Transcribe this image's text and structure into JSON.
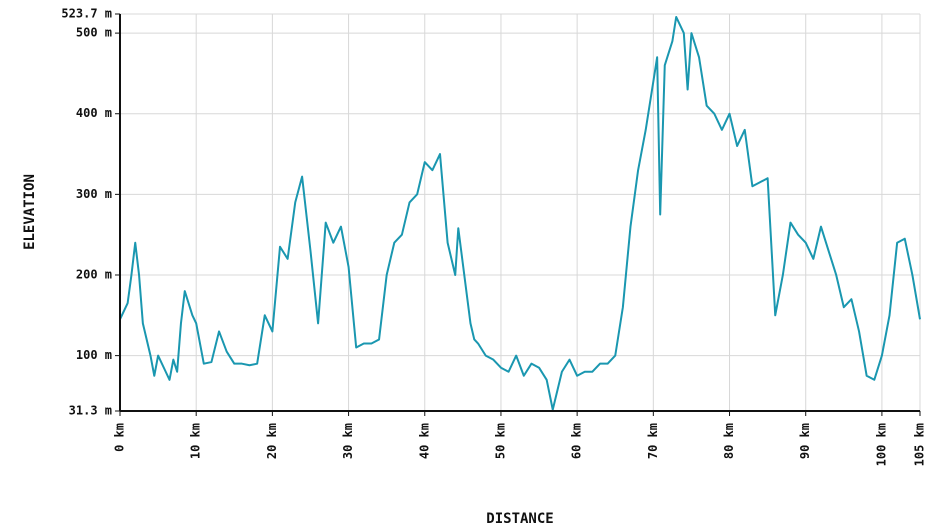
{
  "chart_data": {
    "type": "line",
    "xlabel": "DISTANCE",
    "ylabel": "ELEVATION",
    "x": [
      0,
      1,
      1.5,
      2,
      2.5,
      3,
      4,
      4.5,
      5,
      6,
      6.5,
      7,
      7.5,
      8,
      8.5,
      9.5,
      10,
      11,
      12,
      13,
      14,
      15,
      16,
      17,
      18,
      19,
      20,
      21,
      22,
      23,
      23.9,
      25,
      26,
      27,
      28,
      29,
      30,
      31,
      32,
      33,
      34,
      35,
      36,
      37,
      38,
      39,
      40,
      41,
      42,
      43,
      44,
      44.4,
      46,
      46.5,
      47,
      48,
      49,
      50,
      51,
      52,
      53,
      54,
      55,
      56,
      56.8,
      58,
      59,
      60,
      61,
      62,
      63,
      64,
      65,
      66,
      67,
      68,
      69,
      70,
      70.5,
      70.9,
      71.5,
      72.5,
      73,
      74,
      74.5,
      75,
      76,
      77,
      78,
      79,
      80,
      81,
      82,
      83,
      84,
      85,
      86,
      87,
      88,
      89,
      90,
      91,
      92,
      93,
      94,
      95,
      96,
      97,
      98,
      99,
      100,
      101,
      102,
      103,
      104,
      105
    ],
    "series": [
      {
        "name": "Elevation",
        "color": "#1a97b0",
        "values": [
          145,
          165,
          200,
          240,
          200,
          140,
          100,
          75,
          100,
          80,
          70,
          95,
          80,
          140,
          180,
          150,
          140,
          90,
          92,
          130,
          105,
          90,
          90,
          88,
          90,
          150,
          130,
          235,
          220,
          290,
          322,
          230,
          140,
          265,
          240,
          260,
          210,
          110,
          115,
          115,
          120,
          200,
          240,
          250,
          290,
          300,
          340,
          330,
          350,
          240,
          200,
          258,
          140,
          120,
          115,
          100,
          95,
          85,
          80,
          100,
          75,
          90,
          85,
          70,
          33,
          80,
          95,
          75,
          80,
          80,
          90,
          90,
          100,
          160,
          260,
          330,
          380,
          440,
          470,
          275,
          460,
          490,
          520,
          500,
          430,
          500,
          470,
          410,
          400,
          380,
          400,
          360,
          380,
          310,
          315,
          320,
          150,
          200,
          265,
          250,
          240,
          220,
          260,
          230,
          200,
          160,
          170,
          130,
          75,
          70,
          100,
          150,
          240,
          245,
          200,
          145
        ]
      }
    ],
    "xlim": [
      0,
      105
    ],
    "xticks": [
      {
        "value": 0,
        "label": "0 km"
      },
      {
        "value": 10,
        "label": "10 km"
      },
      {
        "value": 20,
        "label": "20 km"
      },
      {
        "value": 30,
        "label": "30 km"
      },
      {
        "value": 40,
        "label": "40 km"
      },
      {
        "value": 50,
        "label": "50 km"
      },
      {
        "value": 60,
        "label": "60 km"
      },
      {
        "value": 70,
        "label": "70 km"
      },
      {
        "value": 80,
        "label": "80 km"
      },
      {
        "value": 90,
        "label": "90 km"
      },
      {
        "value": 100,
        "label": "100 km"
      },
      {
        "value": 105,
        "label": "105 km"
      }
    ],
    "ylim": [
      31.3,
      523.7
    ],
    "yticks": [
      {
        "value": 31.3,
        "label": "31.3 m"
      },
      {
        "value": 100,
        "label": "100 m"
      },
      {
        "value": 200,
        "label": "200 m"
      },
      {
        "value": 300,
        "label": "300 m"
      },
      {
        "value": 400,
        "label": "400 m"
      },
      {
        "value": 500,
        "label": "500 m"
      },
      {
        "value": 523.7,
        "label": "523.7 m"
      }
    ],
    "grid": true
  }
}
